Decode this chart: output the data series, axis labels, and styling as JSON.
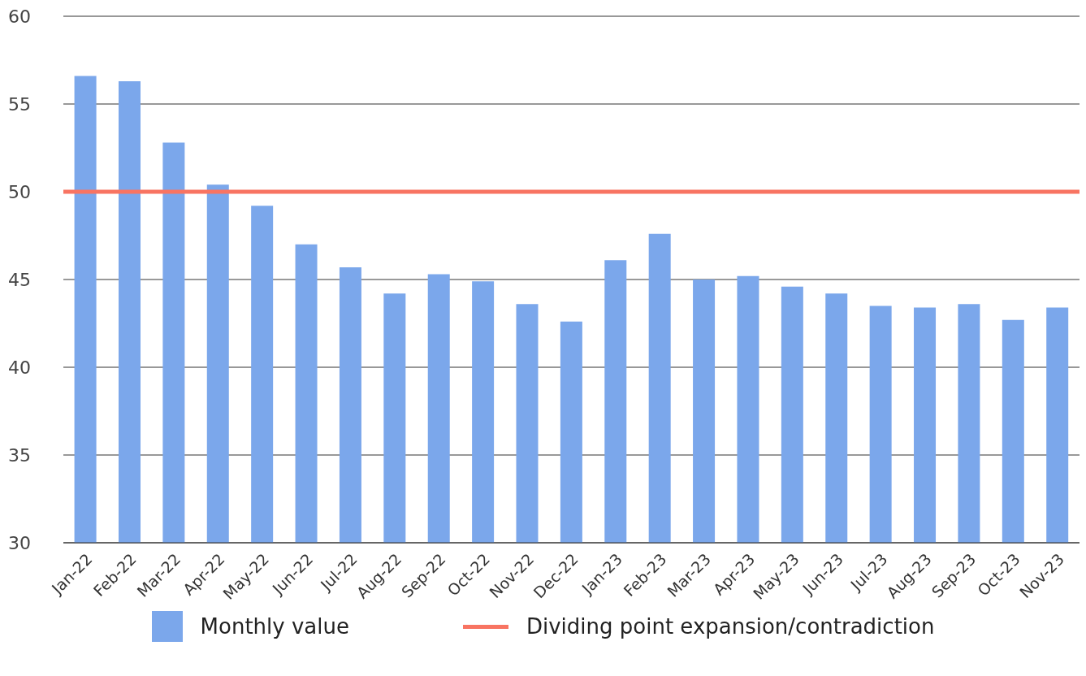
{
  "chart_data": {
    "type": "bar",
    "categories": [
      "Jan-22",
      "Feb-22",
      "Mar-22",
      "Apr-22",
      "May-22",
      "Jun-22",
      "Jul-22",
      "Aug-22",
      "Sep-22",
      "Oct-22",
      "Nov-22",
      "Dec-22",
      "Jan-23",
      "Feb-23",
      "Mar-23",
      "Apr-23",
      "May-23",
      "Jun-23",
      "Jul-23",
      "Aug-23",
      "Sep-23",
      "Oct-23",
      "Nov-23"
    ],
    "series": [
      {
        "name": "Monthly value",
        "color": "#7ba7eb",
        "values": [
          56.6,
          56.3,
          52.8,
          50.4,
          49.2,
          47.0,
          45.7,
          44.2,
          45.3,
          44.9,
          43.6,
          42.6,
          46.1,
          47.6,
          45.0,
          45.2,
          44.6,
          44.2,
          43.5,
          43.4,
          43.6,
          42.7,
          43.4
        ]
      }
    ],
    "ref_lines": [
      {
        "axis": "y",
        "value": 50,
        "label": "Dividing point expansion/contradiction",
        "color": "#f87462"
      }
    ],
    "ylim": [
      30,
      60
    ],
    "yticks": [
      30,
      35,
      40,
      45,
      50,
      55,
      60
    ],
    "grid": "y",
    "legend": "bottom"
  }
}
